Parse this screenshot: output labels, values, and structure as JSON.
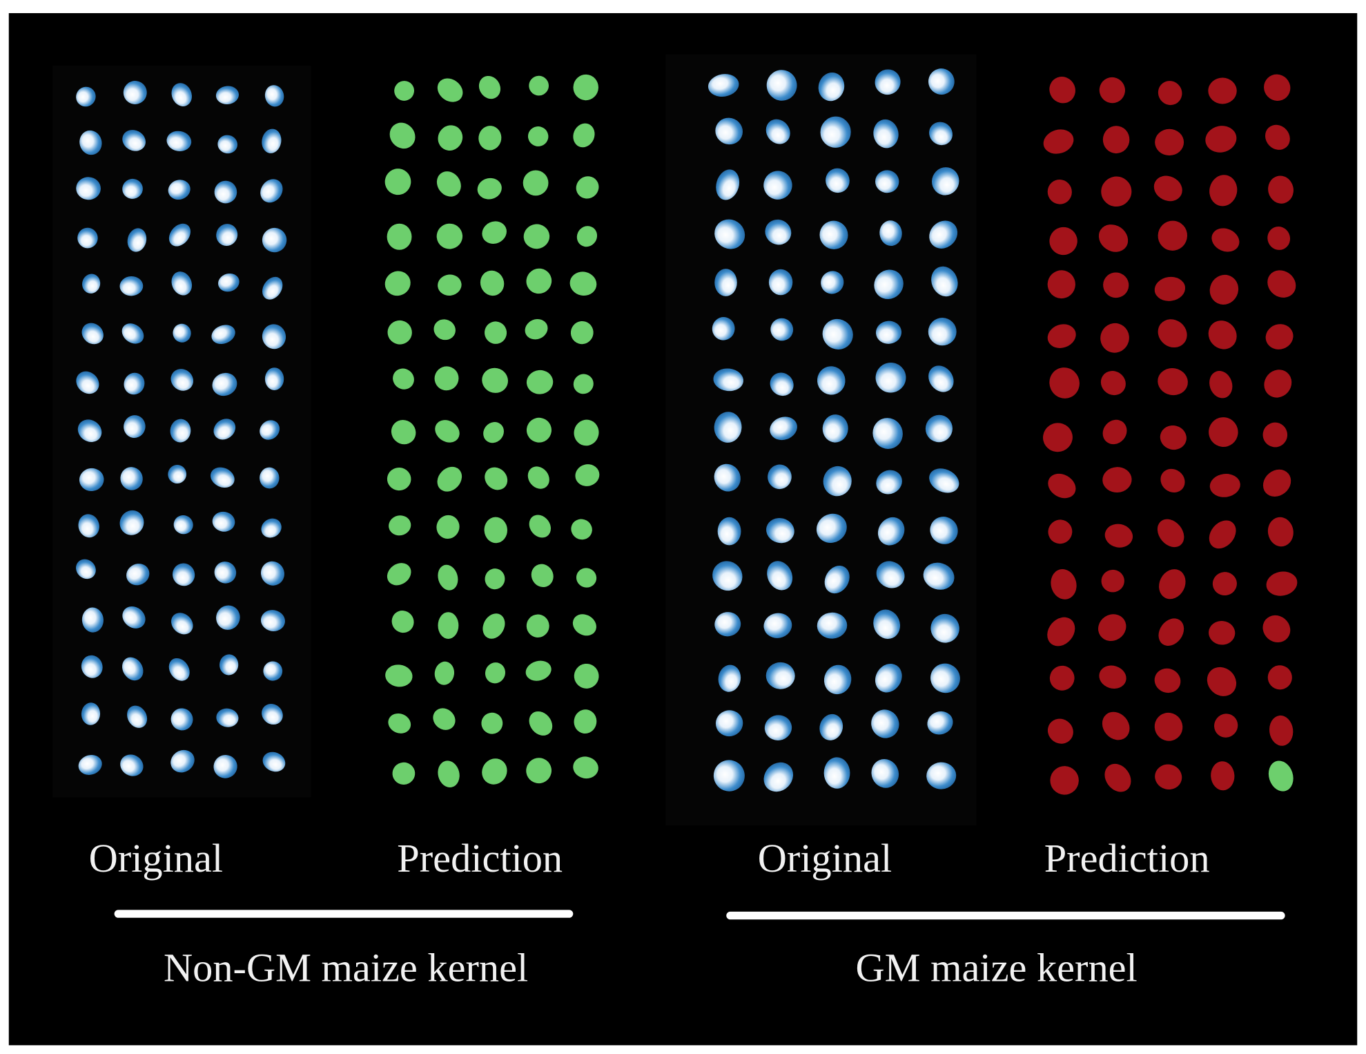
{
  "panels": [
    {
      "label": "Original"
    },
    {
      "label": "Prediction"
    },
    {
      "label": "Original"
    },
    {
      "label": "Prediction"
    }
  ],
  "groups": [
    {
      "label": "Non-GM maize kernel"
    },
    {
      "label": "GM maize kernel"
    }
  ]
}
